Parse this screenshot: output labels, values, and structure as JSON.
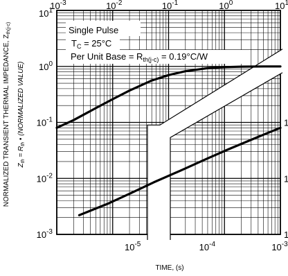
{
  "chart_data": {
    "type": "line",
    "title": "",
    "xlabel": "TIME, (s)",
    "ylabel_line1": "NORMALIZED TRANSIENT THERMAL IMPEDANCE, Z",
    "ylabel_line1_sub": "th(j-c)",
    "ylabel_line2": "Z",
    "ylabel_line2_sub": "th",
    "ylabel_line2_rest": " = R",
    "ylabel_line2_sub2": "th",
    "ylabel_line2_tail": " • (NORMALIZED VALUE)",
    "x_scale": "log",
    "y_scale": "log",
    "top_x_ticks": [
      {
        "value": 0.001,
        "mantissa": "10",
        "exp": "-3"
      },
      {
        "value": 0.01,
        "mantissa": "10",
        "exp": "-2"
      },
      {
        "value": 0.1,
        "mantissa": "10",
        "exp": "-1"
      },
      {
        "value": 1,
        "mantissa": "10",
        "exp": "0"
      },
      {
        "value": 10,
        "mantissa": "10",
        "exp": "1"
      }
    ],
    "top_x_range": [
      0.001,
      10
    ],
    "bottom_x_ticks": [
      {
        "value": 1e-05,
        "mantissa": "10",
        "exp": "-5"
      },
      {
        "value": 0.0001,
        "mantissa": "10",
        "exp": "-4"
      },
      {
        "value": 0.001,
        "mantissa": "10",
        "exp": "-3"
      }
    ],
    "bottom_x_range": [
      1e-06,
      0.001
    ],
    "y_ticks": [
      {
        "value": 10,
        "mantissa": "10",
        "exp": "1"
      },
      {
        "value": 1,
        "mantissa": "10",
        "exp": "0"
      },
      {
        "value": 0.1,
        "mantissa": "10",
        "exp": "-1"
      },
      {
        "value": 0.01,
        "mantissa": "10",
        "exp": "-2"
      },
      {
        "value": 0.001,
        "mantissa": "10",
        "exp": "-3"
      }
    ],
    "y_range": [
      0.001,
      10
    ],
    "right_y_ticks_partial": [
      {
        "value": 0.1,
        "mantissa": "1"
      },
      {
        "value": 0.01,
        "mantissa": "1"
      },
      {
        "value": 0.001,
        "mantissa": "1"
      }
    ],
    "grid": true,
    "legend": {
      "line1": "Single Pulse",
      "line2_pre": "T",
      "line2_sub": "C",
      "line2_post": " = 25°C",
      "line3_pre": "Per Unit Base = R",
      "line3_sub": "th(j-c)",
      "line3_post": " = 0.19°C/W"
    },
    "series": [
      {
        "axis": "top",
        "x": [
          0.001,
          0.002,
          0.005,
          0.01,
          0.02,
          0.05,
          0.1,
          0.2,
          0.5,
          1,
          2,
          5,
          10
        ],
        "y": [
          0.08,
          0.11,
          0.18,
          0.26,
          0.37,
          0.56,
          0.7,
          0.82,
          0.93,
          0.97,
          0.99,
          1.0,
          1.0
        ]
      },
      {
        "axis": "bottom",
        "x": [
          2e-06,
          5e-06,
          1e-05,
          2e-05,
          5e-05,
          0.0001,
          0.0002,
          0.0005,
          0.001
        ],
        "y": [
          0.0022,
          0.0036,
          0.0055,
          0.0085,
          0.0145,
          0.022,
          0.033,
          0.055,
          0.08
        ]
      }
    ]
  }
}
